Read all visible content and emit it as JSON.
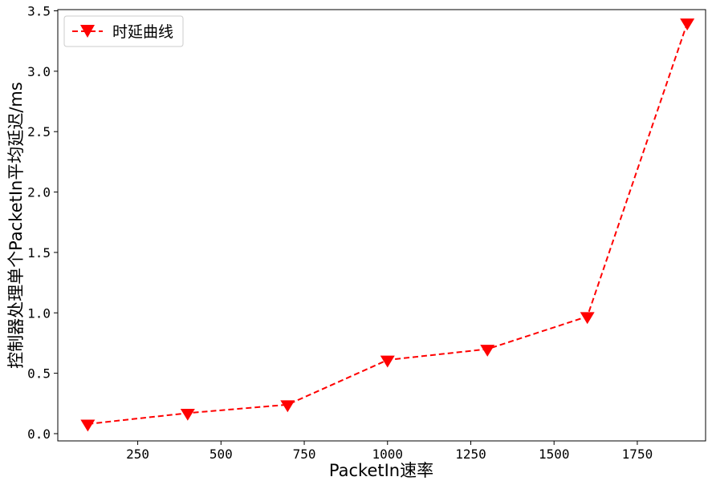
{
  "chart_data": {
    "type": "line",
    "title": "",
    "xlabel": "PacketIn速率",
    "ylabel": "控制器处理单个PacketIn平均延迟/ms",
    "xlim": [
      10,
      1955
    ],
    "ylim": [
      -0.06,
      3.51
    ],
    "xticks": [
      250,
      500,
      750,
      1000,
      1250,
      1500,
      1750
    ],
    "xtick_labels": [
      "250",
      "500",
      "750",
      "1000",
      "1250",
      "1500",
      "1750"
    ],
    "yticks": [
      0.0,
      0.5,
      1.0,
      1.5,
      2.0,
      2.5,
      3.0,
      3.5
    ],
    "ytick_labels": [
      "0.0",
      "0.5",
      "1.0",
      "1.5",
      "2.0",
      "2.5",
      "3.0",
      "3.5"
    ],
    "grid": false,
    "legend_position": "top-left",
    "series": [
      {
        "name": "时延曲线",
        "color": "#ff0000",
        "line_style": "dashed",
        "marker": "triangle-down",
        "x": [
          100,
          400,
          700,
          1000,
          1300,
          1600,
          1900
        ],
        "y": [
          0.08,
          0.17,
          0.24,
          0.61,
          0.7,
          0.97,
          3.4
        ]
      }
    ]
  }
}
